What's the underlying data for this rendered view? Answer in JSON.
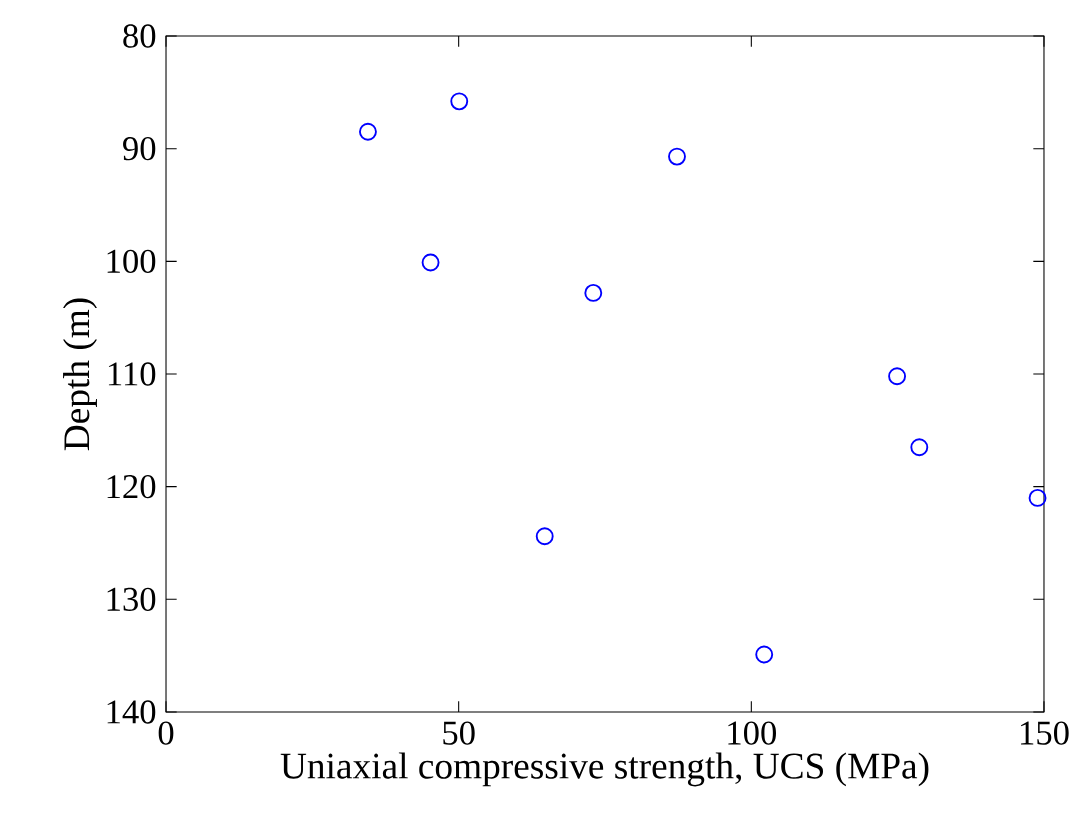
{
  "chart_data": {
    "type": "scatter",
    "xlabel": "Uniaxial compressive strength, UCS (MPa)",
    "ylabel": "Depth (m)",
    "x": [
      34.5,
      50.1,
      87.3,
      45.2,
      73.0,
      124.9,
      128.7,
      148.9,
      64.7,
      102.2
    ],
    "series": [
      {
        "color": "#0000ff",
        "values": [
          88.5,
          85.8,
          90.7,
          100.1,
          102.8,
          110.2,
          116.5,
          121.0,
          124.4,
          134.9
        ]
      }
    ],
    "xlim": [
      0,
      150
    ],
    "xticks": [
      0,
      50,
      100,
      150
    ],
    "ylim": [
      140,
      80
    ],
    "yticks": [
      80,
      90,
      100,
      110,
      120,
      130,
      140
    ],
    "marker": "circle"
  }
}
